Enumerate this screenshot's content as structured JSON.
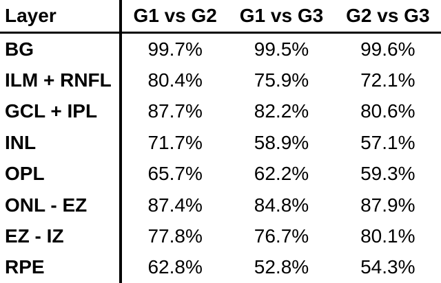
{
  "chart_data": {
    "type": "table",
    "title": "",
    "columns": [
      "Layer",
      "G1 vs G2",
      "G1 vs G3",
      "G2 vs G3"
    ],
    "rows": [
      {
        "layer": "BG",
        "v1": "99.7%",
        "v2": "99.5%",
        "v3": "99.6%"
      },
      {
        "layer": "ILM + RNFL",
        "v1": "80.4%",
        "v2": "75.9%",
        "v3": "72.1%"
      },
      {
        "layer": "GCL + IPL",
        "v1": "87.7%",
        "v2": "82.2%",
        "v3": "80.6%"
      },
      {
        "layer": "INL",
        "v1": "71.7%",
        "v2": "58.9%",
        "v3": "57.1%"
      },
      {
        "layer": "OPL",
        "v1": "65.7%",
        "v2": "62.2%",
        "v3": "59.3%"
      },
      {
        "layer": "ONL - EZ",
        "v1": "87.4%",
        "v2": "84.8%",
        "v3": "87.9%"
      },
      {
        "layer": "EZ - IZ",
        "v1": "77.8%",
        "v2": "76.7%",
        "v3": "80.1%"
      },
      {
        "layer": "RPE",
        "v1": "62.8%",
        "v2": "52.8%",
        "v3": "54.3%"
      }
    ],
    "colors": {
      "text": "#000000",
      "background": "#ffffff",
      "rule": "#000000"
    }
  }
}
